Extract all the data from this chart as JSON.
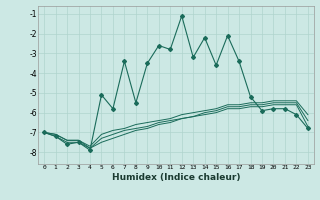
{
  "xlabel": "Humidex (Indice chaleur)",
  "background_color": "#cce8e4",
  "grid_color": "#b0d4ce",
  "line_color": "#1a6b5a",
  "xlim": [
    -0.5,
    23.5
  ],
  "ylim": [
    -8.6,
    -0.6
  ],
  "yticks": [
    -8,
    -7,
    -6,
    -5,
    -4,
    -3,
    -2,
    -1
  ],
  "xticks": [
    0,
    1,
    2,
    3,
    4,
    5,
    6,
    7,
    8,
    9,
    10,
    11,
    12,
    13,
    14,
    15,
    16,
    17,
    18,
    19,
    20,
    21,
    22,
    23
  ],
  "main_y": [
    -7.0,
    -7.2,
    -7.6,
    -7.5,
    -7.9,
    -5.1,
    -5.8,
    -3.4,
    -5.5,
    -3.5,
    -2.6,
    -2.8,
    -1.1,
    -3.2,
    -2.2,
    -3.6,
    -2.1,
    -3.4,
    -5.2,
    -5.9,
    -5.8,
    -5.8,
    -6.1,
    -6.8
  ],
  "line2_y": [
    -7.0,
    -7.2,
    -7.5,
    -7.5,
    -7.8,
    -7.5,
    -7.3,
    -7.1,
    -6.9,
    -6.8,
    -6.6,
    -6.5,
    -6.3,
    -6.2,
    -6.1,
    -6.0,
    -5.8,
    -5.8,
    -5.7,
    -5.7,
    -5.6,
    -5.6,
    -5.6,
    -6.7
  ],
  "line3_y": [
    -7.0,
    -7.1,
    -7.4,
    -7.4,
    -7.8,
    -7.3,
    -7.1,
    -6.9,
    -6.8,
    -6.7,
    -6.5,
    -6.4,
    -6.3,
    -6.2,
    -6.0,
    -5.9,
    -5.7,
    -5.7,
    -5.6,
    -5.6,
    -5.5,
    -5.5,
    -5.5,
    -6.4
  ],
  "line4_y": [
    -7.0,
    -7.1,
    -7.4,
    -7.4,
    -7.7,
    -7.1,
    -6.9,
    -6.8,
    -6.6,
    -6.5,
    -6.4,
    -6.3,
    -6.1,
    -6.0,
    -5.9,
    -5.8,
    -5.6,
    -5.6,
    -5.5,
    -5.5,
    -5.4,
    -5.4,
    -5.4,
    -6.1
  ]
}
